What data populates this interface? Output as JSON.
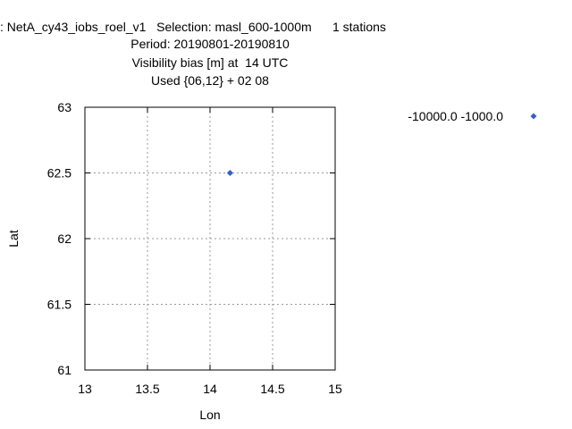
{
  "chart_data": {
    "type": "scatter",
    "title_lines": [
      ": NetA_cy43_iobs_roel_v1   Selection: masl_600-1000m      1 stations",
      "Period: 20190801-20190810",
      "Visibility bias [m] at  14 UTC",
      "Used {06,12} + 02 08"
    ],
    "xlabel": "Lon",
    "ylabel": "Lat",
    "xlim": [
      13,
      15
    ],
    "ylim": [
      61,
      63
    ],
    "x_ticks": [
      13,
      13.5,
      14,
      14.5,
      15
    ],
    "x_tick_labels": [
      "13",
      "13.5",
      "14",
      "14.5",
      "15"
    ],
    "y_ticks": [
      61,
      61.5,
      62,
      62.5,
      63
    ],
    "y_tick_labels": [
      "61",
      "61.5",
      "62",
      "62.5",
      "63"
    ],
    "grid": true,
    "legend_position": "right",
    "series": [
      {
        "name": "-10000.0 -1000.0",
        "color": "#3060d0",
        "marker": "diamond",
        "points": [
          {
            "x": 14.16,
            "y": 62.5
          }
        ]
      }
    ]
  }
}
